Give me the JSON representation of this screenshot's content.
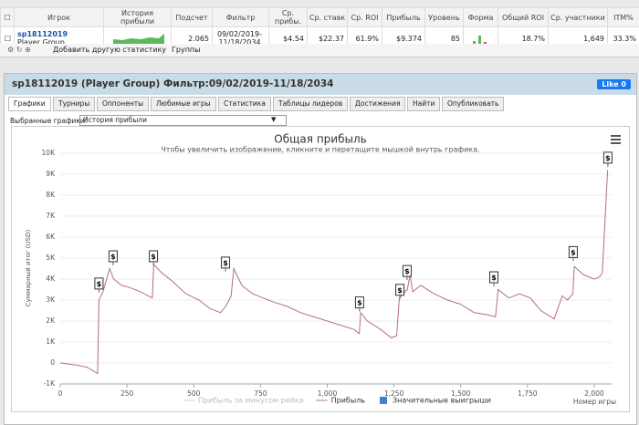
{
  "table": {
    "headers": [
      "Игрок",
      "История прибыли",
      "Подсчет",
      "Фильтр",
      "Ср. прибы.",
      "Ср. ставк",
      "Ср. ROI",
      "Прибыль",
      "Уровень",
      "Форма",
      "Общий ROI",
      "Ср. участники",
      "ITM%"
    ],
    "row": {
      "player": "sp18112019",
      "group": "Player Group",
      "count": "2.065",
      "filter": "09/02/2019-11/18/2034",
      "avg_profit": "$4.54",
      "avg_stake": "$22.37",
      "avg_roi": "61.9%",
      "profit": "$9.374",
      "level": "85",
      "total_roi": "18.7%",
      "avg_entrants": "1,649",
      "itm": "33.3%"
    }
  },
  "toolbar": {
    "add": "Добавить другую статистику",
    "groups": "Группы"
  },
  "panel": {
    "title": "sp18112019 (Player Group) Фильтр:09/02/2019-11/18/2034",
    "like": "Like 0",
    "tabs": [
      "Графики",
      "Турниры",
      "Оппоненты",
      "Любимые игры",
      "Статистика",
      "Таблицы лидеров",
      "Достижения",
      "Найти",
      "Опубликовать"
    ],
    "select_label": "Выбранные графики:",
    "select_value": "История прибыли"
  },
  "chart_data": {
    "type": "line",
    "title": "Общая прибыль",
    "subtitle": "Чтобы увеличить изображение, кликните и перетащите мышкой внутрь графика.",
    "ylabel": "Суммарный итог (USD)",
    "xlabel": "Номер игры",
    "grid": true,
    "xlim": [
      0,
      2065
    ],
    "ylim": [
      -1000,
      10000
    ],
    "xticks": [
      0,
      250,
      500,
      750,
      {
        "value": 1000,
        "label": "1,000"
      },
      {
        "value": 1250,
        "label": "1,250"
      },
      {
        "value": 1500,
        "label": "1,500"
      },
      {
        "value": 1750,
        "label": "1,750"
      },
      {
        "value": 2000,
        "label": "2,000"
      }
    ],
    "yticks": [
      {
        "value": -1000,
        "label": "-1K"
      },
      0,
      {
        "value": 1000,
        "label": "1K"
      },
      {
        "value": 2000,
        "label": "2K"
      },
      {
        "value": 3000,
        "label": "3K"
      },
      {
        "value": 4000,
        "label": "4K"
      },
      {
        "value": 5000,
        "label": "5K"
      },
      {
        "value": 6000,
        "label": "6K"
      },
      {
        "value": 7000,
        "label": "7K"
      },
      {
        "value": 8000,
        "label": "8K"
      },
      {
        "value": 9000,
        "label": "9K"
      },
      {
        "value": 10000,
        "label": "10K"
      }
    ],
    "series": [
      {
        "name": "Прибыль за минусом рейка",
        "color": "#cccccc",
        "visible": false
      },
      {
        "name": "Прибыль",
        "color": "#b5707a",
        "x": [
          0,
          30,
          60,
          100,
          140,
          145,
          160,
          185,
          200,
          230,
          260,
          300,
          330,
          345,
          350,
          380,
          420,
          470,
          520,
          560,
          600,
          620,
          640,
          650,
          680,
          720,
          760,
          800,
          850,
          900,
          950,
          1000,
          1050,
          1100,
          1120,
          1125,
          1150,
          1200,
          1240,
          1260,
          1270,
          1300,
          1310,
          1320,
          1350,
          1400,
          1450,
          1500,
          1550,
          1600,
          1630,
          1640,
          1680,
          1720,
          1760,
          1800,
          1850,
          1880,
          1900,
          1920,
          1925,
          1960,
          2000,
          2020,
          2030,
          2045,
          2050
        ],
        "values": [
          0,
          -50,
          -100,
          -200,
          -500,
          3000,
          3400,
          4500,
          4000,
          3700,
          3600,
          3400,
          3200,
          3100,
          4700,
          4300,
          3900,
          3300,
          3000,
          2600,
          2400,
          2700,
          3200,
          4500,
          3700,
          3300,
          3100,
          2900,
          2700,
          2400,
          2200,
          2000,
          1800,
          1600,
          1400,
          2400,
          2000,
          1600,
          1200,
          1300,
          3100,
          3500,
          4200,
          3400,
          3700,
          3300,
          3000,
          2800,
          2400,
          2300,
          2200,
          3500,
          3100,
          3300,
          3100,
          2500,
          2100,
          3200,
          3000,
          3300,
          4600,
          4200,
          4000,
          4100,
          4300,
          8000,
          9200
        ]
      },
      {
        "name": "Значительные выигрыши",
        "color": "#3d7fd1",
        "marker_label": "$",
        "x": [
          145,
          198,
          349,
          619,
          1121,
          1272,
          1299,
          1624,
          1921,
          2051
        ],
        "values": [
          3700,
          5000,
          5000,
          4700,
          2800,
          3400,
          4300,
          4000,
          5200,
          9700
        ]
      }
    ]
  }
}
